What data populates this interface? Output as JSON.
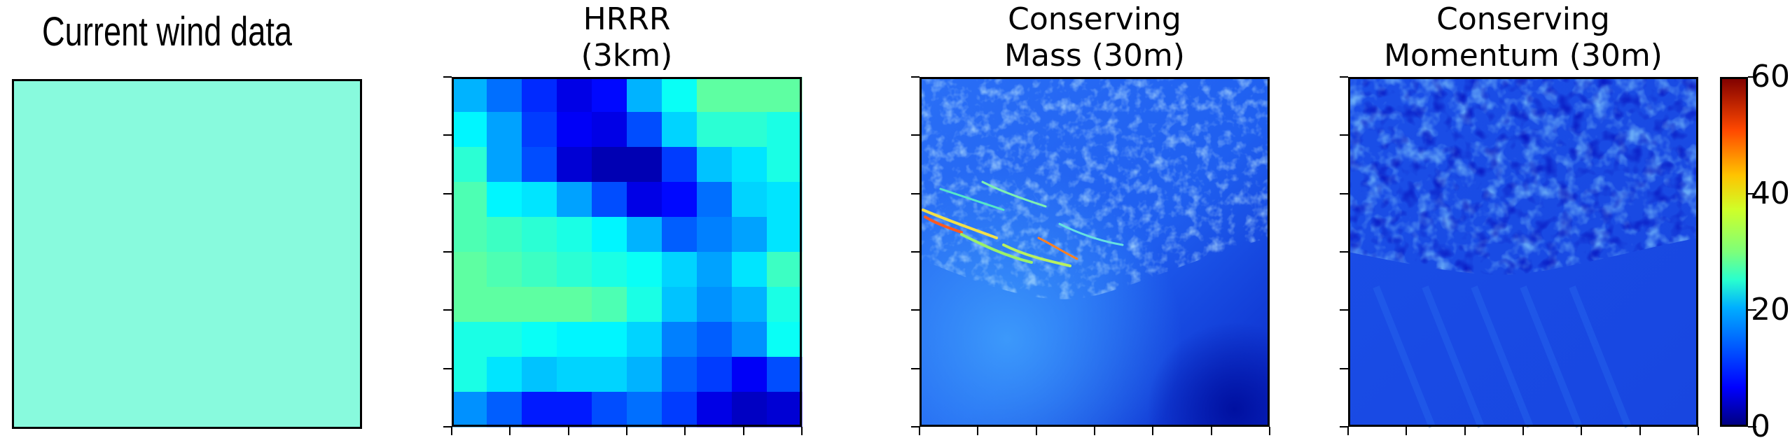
{
  "titles": {
    "p1": "Current wind data",
    "p2_line1": "HRRR",
    "p2_line2": "(3km)",
    "p3_line1": "Conserving",
    "p3_line2": "Mass (30m)",
    "p4_line1": "Conserving",
    "p4_line2": "Momentum (30m)"
  },
  "colors": {
    "uniform_field": "#88fadd",
    "frame": "#000000"
  },
  "chart_data": [
    {
      "type": "heatmap",
      "title": "Current wind data",
      "grid": [
        [
          24.5
        ]
      ],
      "xlabel": "",
      "ylabel": ""
    },
    {
      "type": "heatmap",
      "title": "HRRR (3km)",
      "grid": [
        [
          18,
          14,
          10,
          6,
          8,
          18,
          23,
          28,
          28,
          28
        ],
        [
          22,
          17,
          11,
          7,
          6,
          12,
          20,
          25,
          25,
          24
        ],
        [
          25,
          17,
          12,
          5,
          3,
          3,
          11,
          19,
          21,
          24
        ],
        [
          27,
          22,
          21,
          17,
          12,
          6,
          8,
          14,
          20,
          21
        ],
        [
          27,
          26,
          25,
          24,
          22,
          18,
          13,
          15,
          17,
          21
        ],
        [
          28,
          27,
          26,
          25,
          24,
          23,
          20,
          17,
          21,
          26
        ],
        [
          28,
          28,
          28,
          28,
          27,
          24,
          19,
          16,
          18,
          24
        ],
        [
          24,
          24,
          23,
          22,
          22,
          20,
          15,
          13,
          16,
          23
        ],
        [
          24,
          21,
          19,
          20,
          20,
          18,
          13,
          11,
          7,
          12
        ],
        [
          16,
          13,
          9,
          9,
          12,
          14,
          11,
          6,
          4,
          5
        ]
      ],
      "xlabel": "",
      "ylabel": ""
    },
    {
      "type": "heatmap",
      "title": "Conserving Mass (30m)",
      "description_range": [
        4,
        60
      ],
      "xlabel": "",
      "ylabel": ""
    },
    {
      "type": "heatmap",
      "title": "Conserving Momentum (30m)",
      "description_range": [
        2,
        24
      ],
      "xlabel": "",
      "ylabel": ""
    },
    {
      "type": "colorbar",
      "range": [
        0,
        60
      ],
      "ticks": [
        "0",
        "20",
        "40",
        "60"
      ],
      "colormap": "jet"
    }
  ]
}
